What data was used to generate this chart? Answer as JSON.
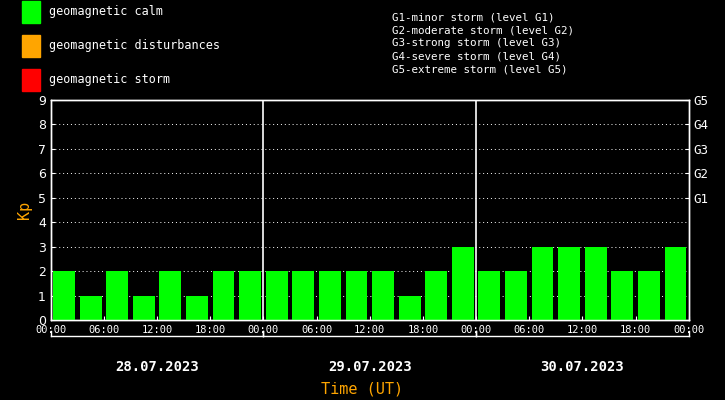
{
  "background_color": "#000000",
  "bar_color_calm": "#00ff00",
  "bar_color_disturbance": "#ffa500",
  "bar_color_storm": "#ff0000",
  "text_color": "#ffffff",
  "ylabel": "Kp",
  "xlabel": "Time (UT)",
  "ylabel_color": "#ffa500",
  "xlabel_color": "#ffa500",
  "ylim": [
    0,
    9
  ],
  "yticks": [
    0,
    1,
    2,
    3,
    4,
    5,
    6,
    7,
    8,
    9
  ],
  "days": [
    "28.07.2023",
    "29.07.2023",
    "30.07.2023"
  ],
  "kp_values": [
    [
      2,
      1,
      2,
      1,
      2,
      1,
      2,
      2
    ],
    [
      2,
      2,
      2,
      2,
      2,
      1,
      2,
      3
    ],
    [
      2,
      2,
      3,
      3,
      3,
      2,
      2,
      3
    ]
  ],
  "legend_items": [
    {
      "label": "geomagnetic calm",
      "color": "#00ff00"
    },
    {
      "label": "geomagnetic disturbances",
      "color": "#ffa500"
    },
    {
      "label": "geomagnetic storm",
      "color": "#ff0000"
    }
  ],
  "storm_levels": [
    "G1-minor storm (level G1)",
    "G2-moderate storm (level G2)",
    "G3-strong storm (level G3)",
    "G4-severe storm (level G4)",
    "G5-extreme storm (level G5)"
  ],
  "right_axis_labels": [
    "G1",
    "G2",
    "G3",
    "G4",
    "G5"
  ],
  "right_axis_positions": [
    5,
    6,
    7,
    8,
    9
  ]
}
